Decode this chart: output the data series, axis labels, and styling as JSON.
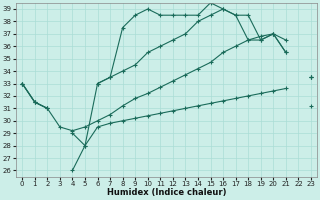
{
  "bg_color": "#cceee8",
  "line_color": "#1a6b5a",
  "grid_color": "#aaddd6",
  "xlabel": "Humidex (Indice chaleur)",
  "xlim": [
    -0.5,
    23.5
  ],
  "ylim": [
    25.5,
    39.5
  ],
  "xticks": [
    0,
    1,
    2,
    3,
    4,
    5,
    6,
    7,
    8,
    9,
    10,
    11,
    12,
    13,
    14,
    15,
    16,
    17,
    18,
    19,
    20,
    21,
    22,
    23
  ],
  "yticks": [
    26,
    27,
    28,
    29,
    30,
    31,
    32,
    33,
    34,
    35,
    36,
    37,
    38,
    39
  ],
  "x": [
    0,
    1,
    2,
    3,
    4,
    5,
    6,
    7,
    8,
    9,
    10,
    11,
    12,
    13,
    14,
    15,
    16,
    17,
    18,
    19,
    20,
    21,
    22,
    23
  ],
  "y_upper": [
    33,
    31.5,
    31,
    null,
    26,
    28.0,
    33.0,
    33.5,
    37.5,
    38.5,
    39.0,
    38.5,
    38.5,
    38.5,
    38.5,
    39.5,
    39.0,
    38.5,
    38.5,
    36.5,
    37.0,
    35.5,
    null,
    33.5
  ],
  "y_mid_upper": [
    33,
    31.5,
    31,
    null,
    null,
    null,
    null,
    null,
    null,
    null,
    null,
    null,
    null,
    null,
    null,
    null,
    null,
    null,
    null,
    null,
    null,
    null,
    null,
    null
  ],
  "y_diag": [
    33,
    31.5,
    31,
    29.5,
    29.2,
    29.5,
    30.0,
    30.5,
    31.2,
    31.8,
    32.2,
    32.7,
    33.2,
    33.7,
    34.2,
    34.7,
    35.5,
    36.0,
    36.5,
    36.8,
    37.0,
    36.5,
    null,
    33.5
  ],
  "y_lower": [
    33,
    31.5,
    31,
    null,
    29.0,
    28.0,
    29.5,
    29.8,
    30.0,
    30.2,
    30.4,
    30.6,
    30.8,
    31.0,
    31.2,
    31.4,
    31.6,
    31.8,
    32.0,
    32.2,
    32.4,
    32.6,
    null,
    31.2
  ],
  "y_upper2": [
    33,
    31.5,
    31,
    null,
    null,
    null,
    33.0,
    33.5,
    34.0,
    34.5,
    35.5,
    36.0,
    36.5,
    37.0,
    38.0,
    38.5,
    39.0,
    38.5,
    36.5,
    36.5,
    37.0,
    35.5,
    null,
    33.5
  ]
}
